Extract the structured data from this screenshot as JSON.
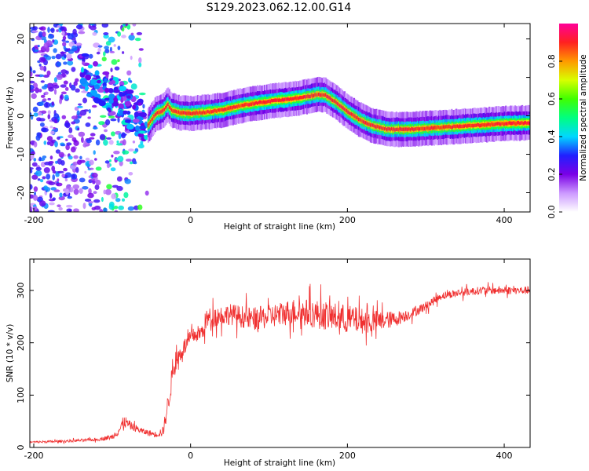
{
  "title": "S129.2023.062.12.00.G14",
  "colors": {
    "snr_line": "#f03030",
    "colorbar": [
      "#ffffff",
      "#cc99ff",
      "#7a00e6",
      "#2020ff",
      "#00d8ff",
      "#00ff80",
      "#40ff00",
      "#d8ff00",
      "#ff9900",
      "#ff2020",
      "#ff0099"
    ]
  },
  "chart_data": [
    {
      "type": "heatmap",
      "title": "",
      "xlabel": "Height of straight line (km)",
      "ylabel": "Frequency (Hz)",
      "xlim": [
        -205,
        433
      ],
      "ylim": [
        -25,
        24
      ],
      "xticks": [
        -200,
        0,
        200,
        400
      ],
      "yticks": [
        -20,
        -10,
        0,
        10,
        20
      ],
      "ridge": {
        "x": [
          -55,
          -45,
          -35,
          -30,
          -25,
          -15,
          0,
          20,
          40,
          60,
          80,
          100,
          120,
          140,
          160,
          170,
          185,
          200,
          215,
          230,
          250,
          280,
          320,
          360,
          400,
          433
        ],
        "freq": [
          -2.5,
          0.5,
          1.5,
          3,
          1.5,
          0.8,
          0.6,
          1.0,
          1.5,
          2.5,
          3.2,
          3.8,
          4.2,
          4.7,
          5.5,
          5.5,
          3.5,
          1.0,
          -1.0,
          -2.5,
          -3.5,
          -3.5,
          -3.0,
          -2.5,
          -2.0,
          -1.8
        ]
      },
      "colorbar": {
        "label": "Normalized spectral amplitude",
        "range": [
          0,
          1
        ],
        "ticks": [
          "0.0",
          "0.2",
          "0.4",
          "0.6",
          "0.8"
        ]
      }
    },
    {
      "type": "line",
      "title": "",
      "xlabel": "Height of straight line (km)",
      "ylabel": "SNR (10 * v/v)",
      "xlim": [
        -205,
        433
      ],
      "ylim": [
        0,
        360
      ],
      "xticks": [
        -200,
        0,
        200,
        400
      ],
      "yticks": [
        0,
        100,
        200,
        300
      ],
      "series": [
        {
          "x": [
            -205,
            -160,
            -120,
            -100,
            -90,
            -85,
            -75,
            -60,
            -45,
            -35,
            -28,
            -22,
            -15,
            -5,
            5,
            15,
            20,
            30,
            50,
            80,
            100,
            130,
            160,
            180,
            200,
            230,
            260,
            280,
            300,
            320,
            340,
            370,
            400,
            433
          ],
          "y": [
            10,
            12,
            15,
            20,
            35,
            50,
            40,
            30,
            25,
            30,
            90,
            150,
            175,
            200,
            215,
            220,
            245,
            250,
            255,
            245,
            250,
            260,
            255,
            250,
            245,
            240,
            245,
            255,
            270,
            290,
            295,
            300,
            300,
            300
          ],
          "noise": [
            4,
            5,
            6,
            10,
            20,
            25,
            15,
            12,
            12,
            20,
            45,
            40,
            35,
            30,
            30,
            35,
            40,
            40,
            40,
            45,
            45,
            50,
            55,
            55,
            55,
            45,
            30,
            20,
            18,
            15,
            15,
            15,
            15,
            15
          ]
        }
      ]
    }
  ]
}
